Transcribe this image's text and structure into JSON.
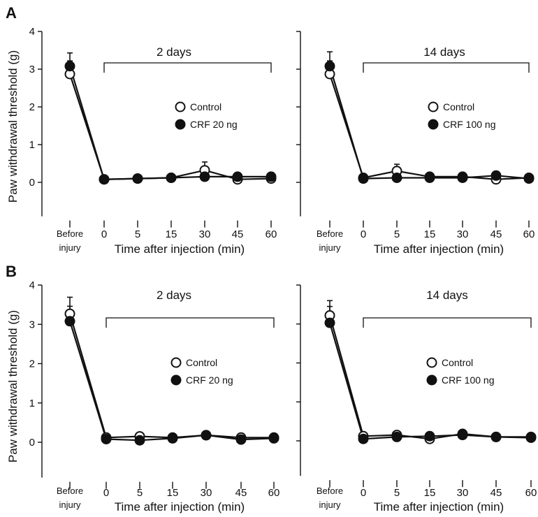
{
  "figure": {
    "panels": [
      {
        "letter": "A"
      },
      {
        "letter": "B"
      }
    ]
  },
  "chart_data": [
    {
      "type": "line",
      "panel": "A",
      "period_label": "2 days",
      "ylabel": "Paw withdrawal threshold (g)",
      "xlabel": "Time after injection (min)",
      "categories": [
        "Before injury",
        "0",
        "5",
        "15",
        "30",
        "45",
        "60"
      ],
      "category_labels": [
        [
          "Before",
          "injury"
        ],
        [
          "0"
        ],
        [
          "5"
        ],
        [
          "15"
        ],
        [
          "30"
        ],
        [
          "45"
        ],
        [
          "60"
        ]
      ],
      "yticks": [
        0,
        1,
        2,
        3,
        4
      ],
      "ylim": [
        -0.9,
        4
      ],
      "legend_position": "center-right",
      "series": [
        {
          "name": "Control",
          "marker": "open-circle",
          "values": [
            2.87,
            0.08,
            0.1,
            0.12,
            0.32,
            0.08,
            0.1
          ],
          "errors": [
            0.35,
            0,
            0,
            0,
            0.22,
            0,
            0
          ]
        },
        {
          "name": "CRF 20 ng",
          "marker": "filled-circle",
          "values": [
            3.08,
            0.08,
            0.1,
            0.12,
            0.15,
            0.15,
            0.15
          ],
          "errors": [
            0.35,
            0,
            0,
            0,
            0,
            0,
            0
          ]
        }
      ]
    },
    {
      "type": "line",
      "panel": "A",
      "period_label": "14 days",
      "ylabel": "",
      "xlabel": "Time after injection (min)",
      "categories": [
        "Before injury",
        "0",
        "5",
        "15",
        "30",
        "45",
        "60"
      ],
      "category_labels": [
        [
          "Before",
          "injury"
        ],
        [
          "0"
        ],
        [
          "5"
        ],
        [
          "15"
        ],
        [
          "30"
        ],
        [
          "45"
        ],
        [
          "60"
        ]
      ],
      "yticks": [
        0,
        1,
        2,
        3,
        4
      ],
      "ylim": [
        -0.9,
        4
      ],
      "legend_position": "center-right",
      "series": [
        {
          "name": "Control",
          "marker": "open-circle",
          "values": [
            2.87,
            0.12,
            0.3,
            0.15,
            0.15,
            0.08,
            0.12
          ],
          "errors": [
            0.35,
            0,
            0.18,
            0,
            0,
            0,
            0
          ]
        },
        {
          "name": "CRF 100 ng",
          "marker": "filled-circle",
          "values": [
            3.08,
            0.1,
            0.12,
            0.12,
            0.12,
            0.18,
            0.1
          ],
          "errors": [
            0.38,
            0,
            0,
            0,
            0,
            0,
            0
          ]
        }
      ]
    },
    {
      "type": "line",
      "panel": "B",
      "period_label": "2 days",
      "ylabel": "Paw withdrawal threshold (g)",
      "xlabel": "Time after injection (min)",
      "categories": [
        "Before injury",
        "0",
        "5",
        "15",
        "30",
        "45",
        "60"
      ],
      "category_labels": [
        [
          "Before",
          "injury"
        ],
        [
          "0"
        ],
        [
          "5"
        ],
        [
          "15"
        ],
        [
          "30"
        ],
        [
          "45"
        ],
        [
          "60"
        ]
      ],
      "yticks": [
        0,
        1,
        2,
        3,
        4
      ],
      "ylim": [
        -0.9,
        4
      ],
      "legend_position": "center-right",
      "series": [
        {
          "name": "Control",
          "marker": "open-circle",
          "values": [
            3.27,
            0.12,
            0.15,
            0.12,
            0.18,
            0.12,
            0.12
          ],
          "errors": [
            0.42,
            0,
            0.08,
            0,
            0,
            0,
            0
          ]
        },
        {
          "name": "CRF 20 ng",
          "marker": "filled-circle",
          "values": [
            3.08,
            0.08,
            0.05,
            0.1,
            0.18,
            0.07,
            0.1
          ],
          "errors": [
            0.38,
            0,
            0,
            0,
            0,
            0,
            0
          ]
        }
      ]
    },
    {
      "type": "line",
      "panel": "B",
      "period_label": "14 days",
      "ylabel": "",
      "xlabel": "Time after injection (min)",
      "categories": [
        "Before injury",
        "0",
        "5",
        "15",
        "30",
        "45",
        "60"
      ],
      "category_labels": [
        [
          "Before",
          "injury"
        ],
        [
          "0"
        ],
        [
          "5"
        ],
        [
          "15"
        ],
        [
          "30"
        ],
        [
          "45"
        ],
        [
          "60"
        ]
      ],
      "yticks": [
        0,
        1,
        2,
        3,
        4
      ],
      "ylim": [
        -0.9,
        4
      ],
      "legend_position": "center-right",
      "series": [
        {
          "name": "Control",
          "marker": "open-circle",
          "values": [
            3.22,
            0.12,
            0.15,
            0.05,
            0.18,
            0.1,
            0.1
          ],
          "errors": [
            0.38,
            0,
            0.08,
            0,
            0,
            0,
            0
          ]
        },
        {
          "name": "CRF 100 ng",
          "marker": "filled-circle",
          "values": [
            3.03,
            0.05,
            0.1,
            0.12,
            0.15,
            0.1,
            0.08
          ],
          "errors": [
            0.42,
            0,
            0,
            0,
            0,
            0,
            0
          ]
        }
      ]
    }
  ]
}
